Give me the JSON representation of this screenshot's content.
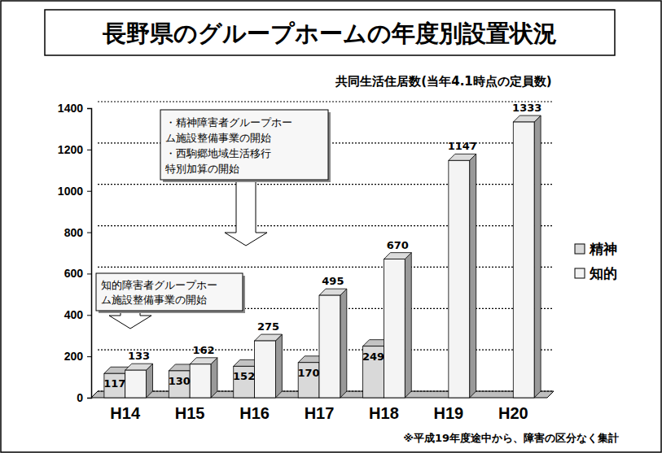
{
  "chart_data": {
    "type": "bar",
    "title": "長野県のグループホームの年度別設置状況",
    "subtitle": "共同生活住居数(当年4.1時点の定員数)",
    "categories": [
      "H14",
      "H15",
      "H16",
      "H17",
      "H18",
      "H19",
      "H20"
    ],
    "series": [
      {
        "name": "精神",
        "color": "#d9d9d9",
        "values": [
          117,
          130,
          152,
          170,
          249,
          null,
          null
        ]
      },
      {
        "name": "知的",
        "color": "#f4f4f4",
        "values": [
          133,
          162,
          275,
          495,
          670,
          1147,
          1333
        ]
      }
    ],
    "ylim": [
      0,
      1400
    ],
    "yticks": [
      0,
      200,
      400,
      600,
      800,
      1000,
      1200,
      1400
    ],
    "grid": true,
    "data_labels": true,
    "legend": "right",
    "annotations": [
      {
        "lines": [
          "・精神障害者グループホー",
          "ム施設整備事業の開始",
          "・西駒郷地域生活移行",
          "特別加算の開始"
        ]
      },
      {
        "lines": [
          "知的障害者グループホー",
          "ム施設整備事業の開始"
        ]
      }
    ],
    "footnote": "※平成19年度途中から、障害の区分なく集計"
  }
}
